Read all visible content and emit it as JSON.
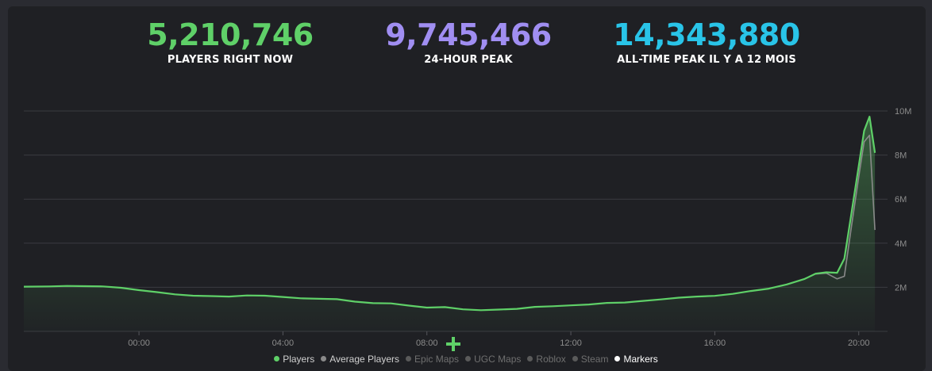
{
  "stats": {
    "now": {
      "value": "5,210,746",
      "label": "PLAYERS RIGHT NOW"
    },
    "peak24": {
      "value": "9,745,466",
      "label": "24-HOUR PEAK"
    },
    "alltime": {
      "value": "14,343,880",
      "label": "ALL-TIME PEAK IL Y A 12 MOIS"
    }
  },
  "legend": [
    {
      "label": "Players",
      "color": "#5fd068",
      "text_color": "#d0d0d0"
    },
    {
      "label": "Average Players",
      "color": "#8a8a8a",
      "text_color": "#d0d0d0"
    },
    {
      "label": "Epic Maps",
      "color": "#5a5a5a",
      "text_color": "#6f6f6f"
    },
    {
      "label": "UGC Maps",
      "color": "#5a5a5a",
      "text_color": "#6f6f6f"
    },
    {
      "label": "Roblox",
      "color": "#5a5a5a",
      "text_color": "#6f6f6f"
    },
    {
      "label": "Steam",
      "color": "#5a5a5a",
      "text_color": "#6f6f6f"
    },
    {
      "label": "Markers",
      "color": "#ffffff",
      "text_color": "#ffffff"
    }
  ],
  "chart_data": {
    "type": "area",
    "x_unit": "hours",
    "ylim": [
      0,
      10000000
    ],
    "xlim": [
      -3.2,
      20.8
    ],
    "y_ticks": [
      {
        "value": 2000000,
        "label": "2M"
      },
      {
        "value": 4000000,
        "label": "4M"
      },
      {
        "value": 6000000,
        "label": "6M"
      },
      {
        "value": 8000000,
        "label": "8M"
      },
      {
        "value": 10000000,
        "label": "10M"
      }
    ],
    "x_ticks": [
      {
        "value": 0,
        "label": "00:00"
      },
      {
        "value": 4,
        "label": "04:00"
      },
      {
        "value": 8,
        "label": "08:00"
      },
      {
        "value": 12,
        "label": "12:00"
      },
      {
        "value": 16,
        "label": "16:00"
      },
      {
        "value": 20,
        "label": "20:00"
      }
    ],
    "grid": true,
    "series": [
      {
        "name": "Players",
        "color": "#5fd068",
        "points": [
          [
            -3.2,
            2030000
          ],
          [
            -2.5,
            2040000
          ],
          [
            -2.0,
            2060000
          ],
          [
            -1.5,
            2050000
          ],
          [
            -1.0,
            2040000
          ],
          [
            -0.5,
            1980000
          ],
          [
            0.0,
            1870000
          ],
          [
            0.5,
            1780000
          ],
          [
            1.0,
            1680000
          ],
          [
            1.5,
            1620000
          ],
          [
            2.0,
            1600000
          ],
          [
            2.5,
            1580000
          ],
          [
            3.0,
            1630000
          ],
          [
            3.5,
            1620000
          ],
          [
            4.0,
            1560000
          ],
          [
            4.5,
            1500000
          ],
          [
            5.0,
            1480000
          ],
          [
            5.5,
            1460000
          ],
          [
            6.0,
            1350000
          ],
          [
            6.5,
            1280000
          ],
          [
            7.0,
            1270000
          ],
          [
            7.5,
            1170000
          ],
          [
            8.0,
            1080000
          ],
          [
            8.5,
            1100000
          ],
          [
            9.0,
            1000000
          ],
          [
            9.5,
            960000
          ],
          [
            10.0,
            990000
          ],
          [
            10.5,
            1020000
          ],
          [
            11.0,
            1110000
          ],
          [
            11.5,
            1140000
          ],
          [
            12.0,
            1180000
          ],
          [
            12.5,
            1220000
          ],
          [
            13.0,
            1290000
          ],
          [
            13.5,
            1310000
          ],
          [
            14.0,
            1380000
          ],
          [
            14.5,
            1450000
          ],
          [
            15.0,
            1530000
          ],
          [
            15.5,
            1580000
          ],
          [
            16.0,
            1610000
          ],
          [
            16.5,
            1700000
          ],
          [
            17.0,
            1830000
          ],
          [
            17.5,
            1940000
          ],
          [
            18.0,
            2130000
          ],
          [
            18.5,
            2380000
          ],
          [
            18.8,
            2620000
          ],
          [
            19.1,
            2680000
          ],
          [
            19.4,
            2660000
          ],
          [
            19.6,
            3300000
          ],
          [
            19.8,
            5400000
          ],
          [
            20.0,
            7500000
          ],
          [
            20.15,
            9100000
          ],
          [
            20.3,
            9745466
          ],
          [
            20.45,
            8100000
          ]
        ]
      },
      {
        "name": "Average Players",
        "color": "#8a8a8a",
        "points": [
          [
            18.8,
            2600000
          ],
          [
            19.1,
            2640000
          ],
          [
            19.4,
            2380000
          ],
          [
            19.6,
            2500000
          ],
          [
            19.8,
            4800000
          ],
          [
            20.0,
            7000000
          ],
          [
            20.15,
            8600000
          ],
          [
            20.3,
            8900000
          ],
          [
            20.45,
            4600000
          ]
        ]
      }
    ]
  }
}
